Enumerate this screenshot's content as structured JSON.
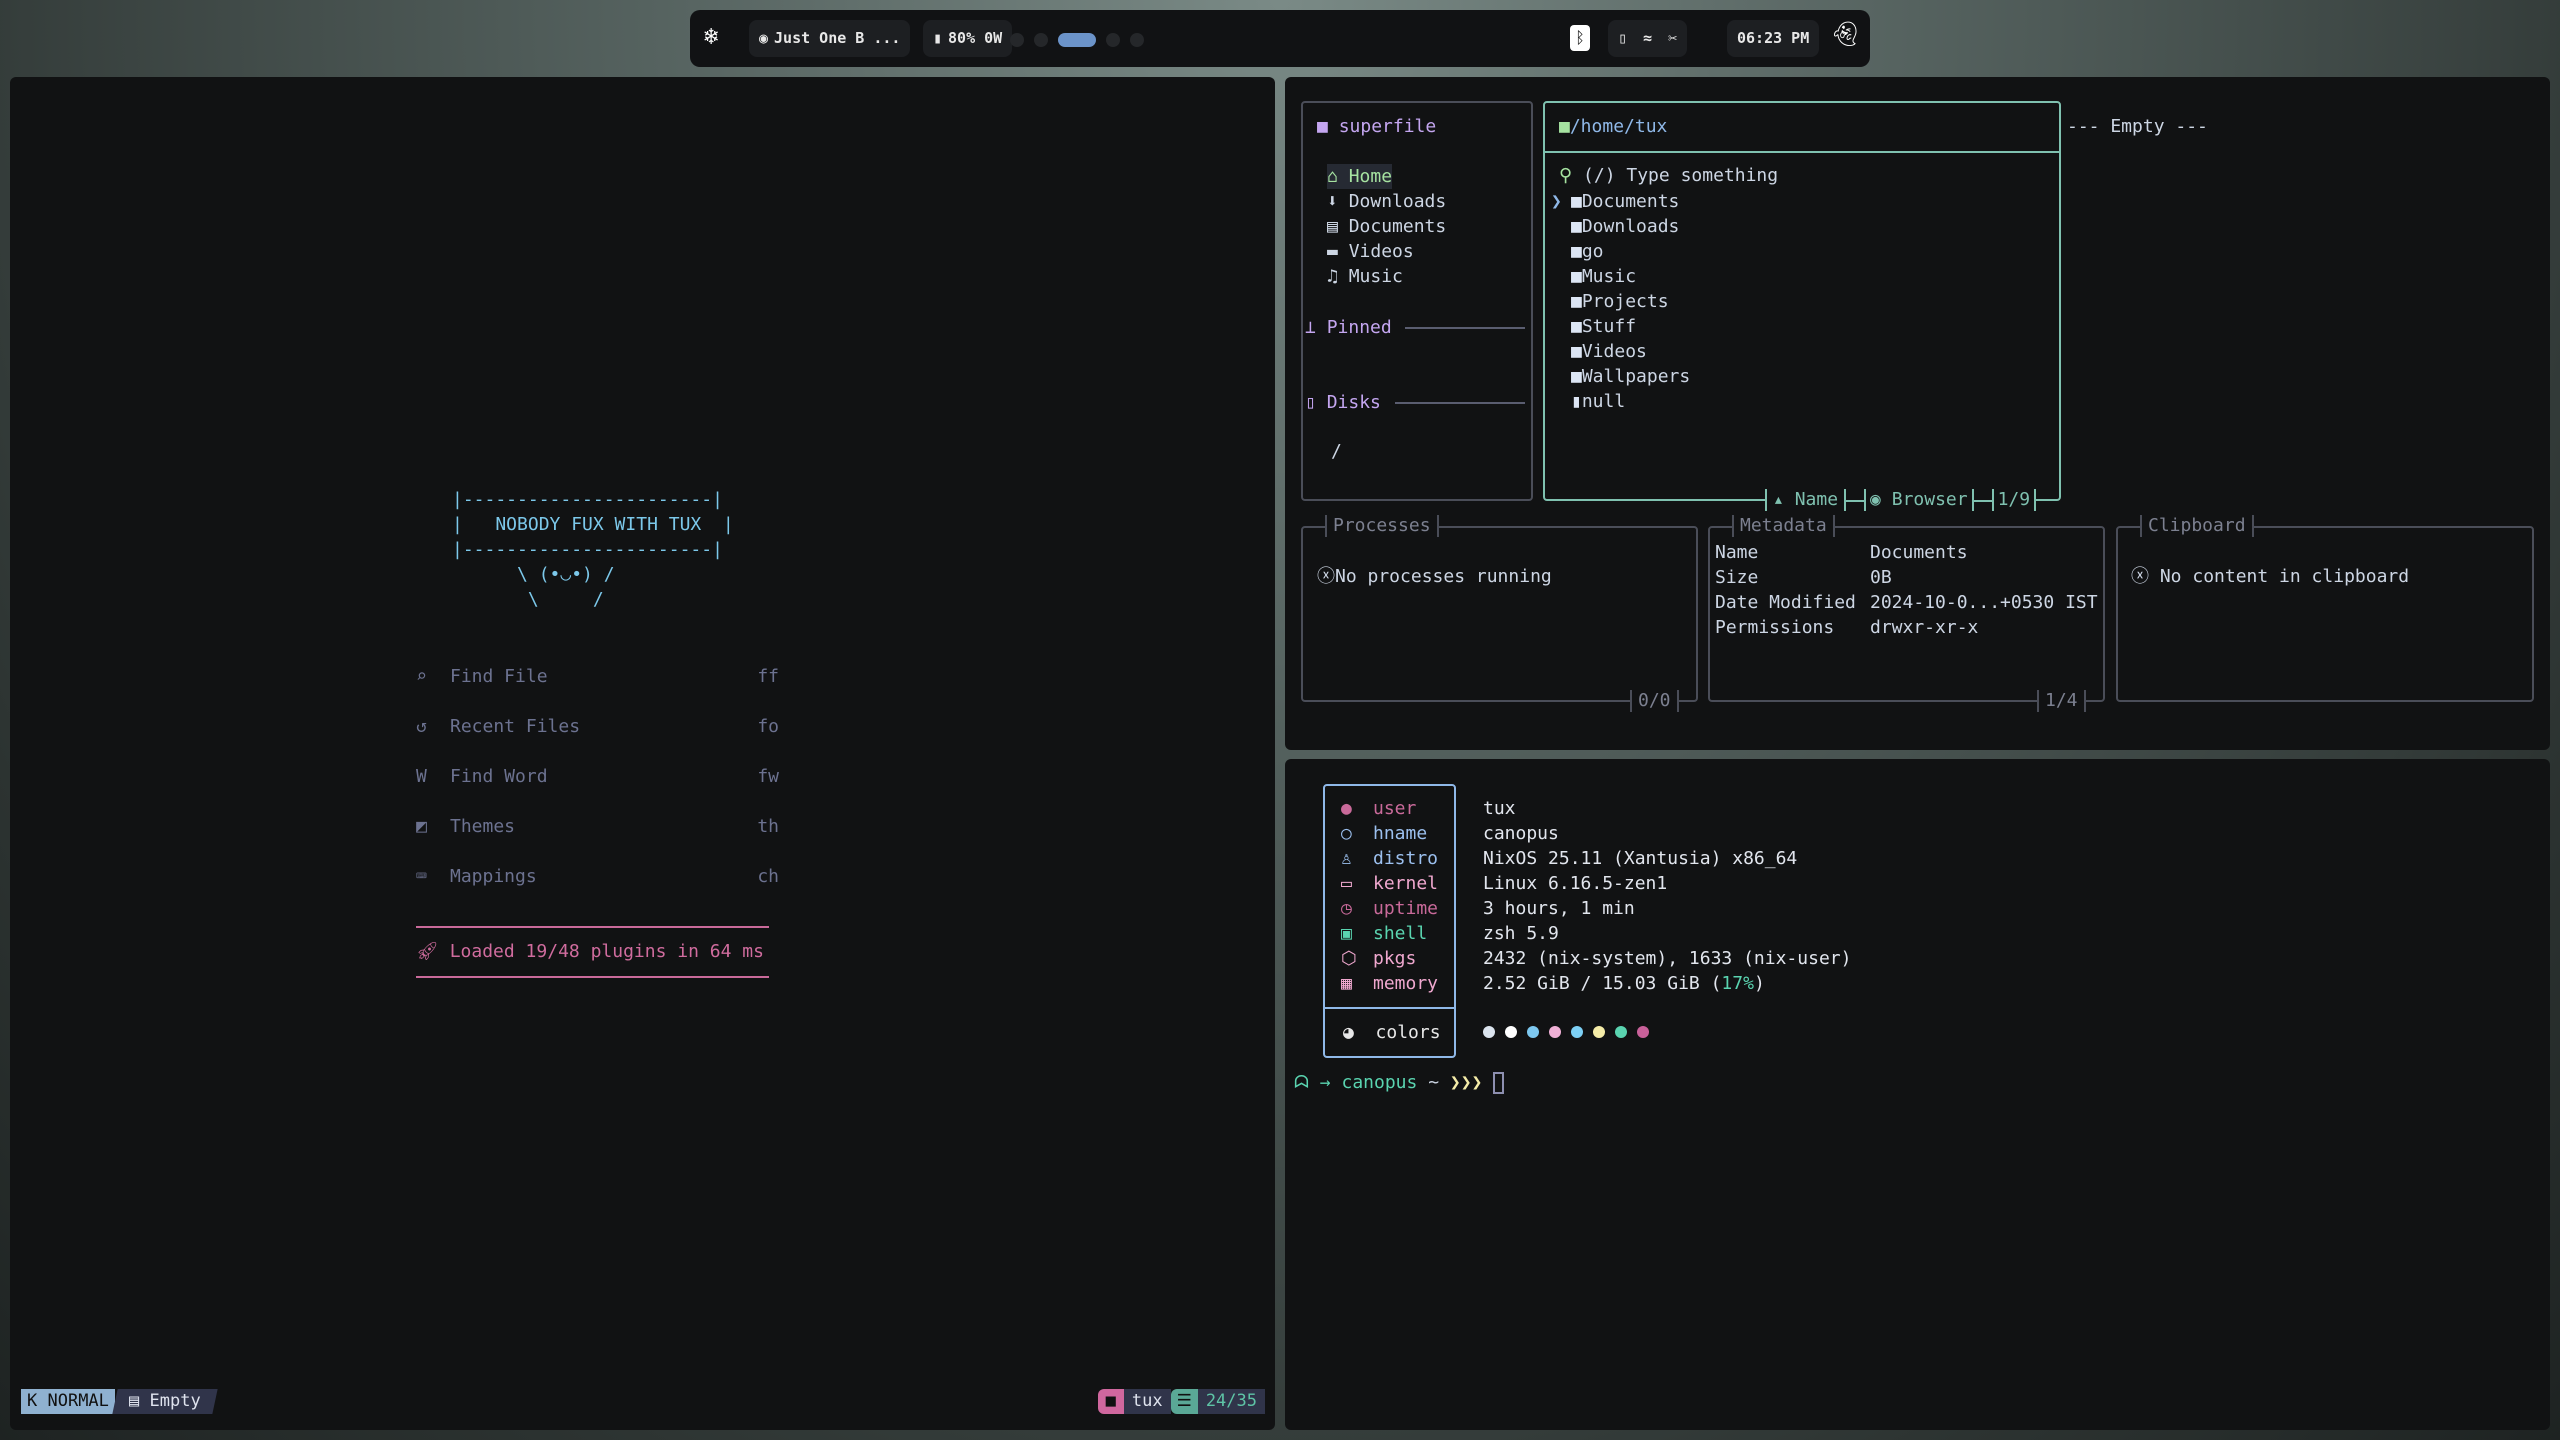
{
  "topbar": {
    "media_title": "Just One B ...",
    "battery": "80% 0W",
    "workspaces": [
      {
        "active": false
      },
      {
        "active": false
      },
      {
        "active": true
      },
      {
        "active": false
      },
      {
        "active": false
      }
    ],
    "clock": "06:23 PM",
    "workspace_color": "#6b93c9"
  },
  "nvim": {
    "banner": [
      "|-----------------------|",
      "|   NOBODY FUX WITH TUX  |",
      "|-----------------------|",
      "      \\ (•◡•) /",
      "       \\     /"
    ],
    "menu": [
      {
        "icon": "find-file-icon",
        "glyph": "⌕",
        "label": "Find File",
        "key": "ff"
      },
      {
        "icon": "history-icon",
        "glyph": "↺",
        "label": "Recent Files",
        "key": "fo"
      },
      {
        "icon": "word-icon",
        "glyph": "W",
        "label": "Find Word",
        "key": "fw"
      },
      {
        "icon": "palette-icon",
        "glyph": "◩",
        "label": "Themes",
        "key": "th"
      },
      {
        "icon": "keyboard-icon",
        "glyph": "⌨",
        "label": "Mappings",
        "key": "ch"
      }
    ],
    "loaded": "Loaded 19/48 plugins in 64 ms",
    "status": {
      "mode": "NORMAL",
      "buffer": "Empty",
      "cwd": "tux",
      "position": "24/35"
    }
  },
  "superfile": {
    "title": "superfile",
    "sidebar": [
      "Home",
      "Downloads",
      "Documents",
      "Videos",
      "Music"
    ],
    "pinned": "Pinned",
    "disks": "Disks",
    "disk_items": [
      "/"
    ],
    "path": "/home/tux",
    "search_placeholder": "(/) Type something",
    "files": [
      {
        "name": "Documents",
        "type": "folder",
        "selected": true
      },
      {
        "name": "Downloads",
        "type": "folder"
      },
      {
        "name": "go",
        "type": "folder"
      },
      {
        "name": "Music",
        "type": "folder"
      },
      {
        "name": "Projects",
        "type": "folder"
      },
      {
        "name": "Stuff",
        "type": "folder"
      },
      {
        "name": "Videos",
        "type": "folder"
      },
      {
        "name": "Wallpapers",
        "type": "folder"
      },
      {
        "name": "null",
        "type": "file"
      }
    ],
    "sort": "Name",
    "mode": "Browser",
    "count": "1/9",
    "preview": "--- Empty ---",
    "processes": {
      "title": "Processes",
      "empty": "No processes running",
      "count": "0/0"
    },
    "metadata": {
      "title": "Metadata",
      "rows": [
        [
          "Name",
          "Documents"
        ],
        [
          "Size",
          "0B"
        ],
        [
          "Date Modified",
          "2024-10-0...+0530 IST"
        ],
        [
          "Permissions",
          "drwxr-xr-x"
        ]
      ],
      "count": "1/4"
    },
    "clipboard": {
      "title": "Clipboard",
      "empty": "No content in clipboard"
    }
  },
  "fetch": {
    "rows": [
      {
        "icon": "user-icon",
        "glyph": "●",
        "key": "user",
        "value": "tux",
        "color": "#c96a9a"
      },
      {
        "icon": "hostname-icon",
        "glyph": "○",
        "key": "hname",
        "value": "canopus",
        "color": "#9cc0ef"
      },
      {
        "icon": "linux-icon",
        "glyph": "♙",
        "key": "distro",
        "value": "NixOS 25.11 (Xantusia) x86_64",
        "color": "#9cc0ef"
      },
      {
        "icon": "laptop-icon",
        "glyph": "▭",
        "key": "kernel",
        "value": "Linux 6.16.5-zen1",
        "color": "#f0a8cf"
      },
      {
        "icon": "clock-icon",
        "glyph": "◷",
        "key": "uptime",
        "value": "3 hours, 1 min",
        "color": "#c96a9a"
      },
      {
        "icon": "terminal-icon",
        "glyph": "▣",
        "key": "shell",
        "value": "zsh 5.9",
        "color": "#5ad4b0"
      },
      {
        "icon": "package-icon",
        "glyph": "⬡",
        "key": "pkgs",
        "value": "2432 (nix-system), 1633 (nix-user)",
        "color": "#f0a8cf"
      },
      {
        "icon": "memory-icon",
        "glyph": "▦",
        "key": "memory",
        "value": "2.52 GiB / 15.03 GiB (",
        "extra": "17%",
        "tail": ")",
        "color": "#f0a8cf"
      }
    ],
    "colors_label": "colors",
    "palette": [
      "#dbe4ee",
      "#ffffff",
      "#7dc8f0",
      "#f0b0d6",
      "#7dd0f5",
      "#f5eca8",
      "#5ad4b0",
      "#c9619a"
    ],
    "prompt": {
      "host": "canopus",
      "dir": "~",
      "arrows": "❯❯❯"
    }
  }
}
